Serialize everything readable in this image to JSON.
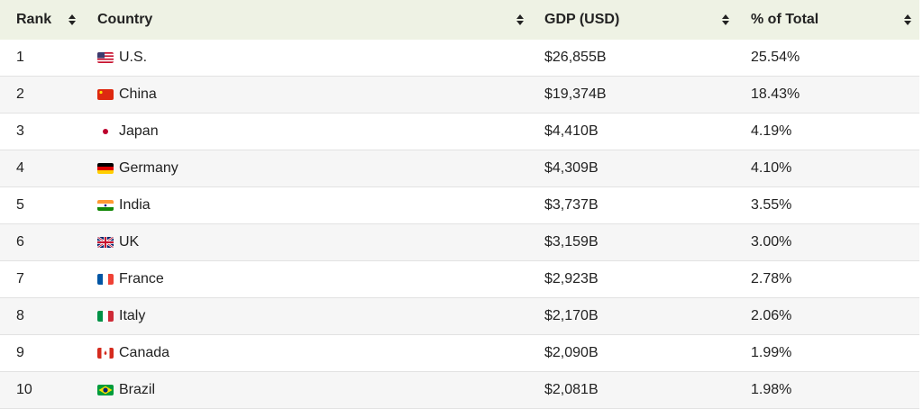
{
  "table": {
    "headers": [
      "Rank",
      "Country",
      "GDP (USD)",
      "% of Total"
    ],
    "rows": [
      [
        1,
        "U.S.",
        "$26,855B",
        "25.54%"
      ],
      [
        2,
        "China",
        "$19,374B",
        "18.43%"
      ],
      [
        3,
        "Japan",
        "$4,410B",
        "4.19%"
      ],
      [
        4,
        "Germany",
        "$4,309B",
        "4.10%"
      ],
      [
        5,
        "India",
        "$3,737B",
        "3.55%"
      ],
      [
        6,
        "UK",
        "$3,159B",
        "3.00%"
      ],
      [
        7,
        "France",
        "$2,923B",
        "2.78%"
      ],
      [
        8,
        "Italy",
        "$2,170B",
        "2.06%"
      ],
      [
        9,
        "Canada",
        "$2,090B",
        "1.99%"
      ],
      [
        10,
        "Brazil",
        "$2,081B",
        "1.98%"
      ]
    ]
  }
}
